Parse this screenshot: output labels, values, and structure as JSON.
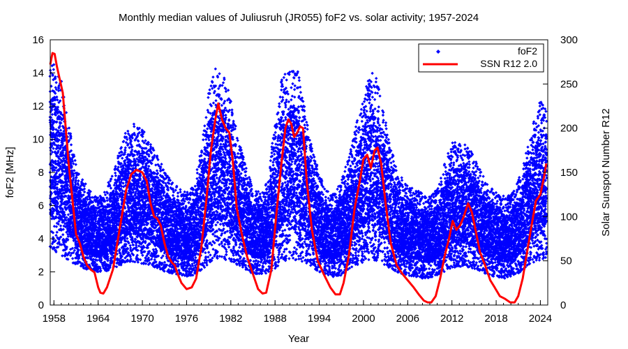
{
  "chart_data": {
    "type": "scatter",
    "title": "Monthly median values of Juliusruh (JR055) foF2 vs. solar activity; 1957-2024",
    "xlabel": "Year",
    "ylabel": "foF2 [MHz]",
    "y2label": "Solar Sunspot Number R12",
    "xlim": [
      1957.5,
      2025
    ],
    "ylim": [
      0,
      16
    ],
    "y2lim": [
      0,
      300
    ],
    "x_ticks": [
      "1958",
      "1964",
      "1970",
      "1976",
      "1982",
      "1988",
      "1994",
      "2000",
      "2006",
      "2012",
      "2018",
      "2024"
    ],
    "y_ticks": [
      "0",
      "2",
      "4",
      "6",
      "8",
      "10",
      "12",
      "14",
      "16"
    ],
    "y2_ticks": [
      "0",
      "50",
      "100",
      "150",
      "200",
      "250",
      "300"
    ],
    "legend_position": "top-right",
    "series": [
      {
        "name": "foF2",
        "kind": "scatter",
        "axis": "left",
        "color": "#0000ff",
        "envelope": {
          "x": [
            1957.5,
            1958,
            1959,
            1960,
            1961,
            1962,
            1963,
            1964,
            1965,
            1966,
            1967,
            1968,
            1969,
            1970,
            1971,
            1972,
            1973,
            1974,
            1975,
            1976,
            1977,
            1978,
            1979,
            1980,
            1981,
            1982,
            1983,
            1984,
            1985,
            1986,
            1987,
            1988,
            1989,
            1990,
            1991,
            1992,
            1993,
            1994,
            1995,
            1996,
            1997,
            1998,
            1999,
            2000,
            2001,
            2002,
            2003,
            2004,
            2005,
            2006,
            2007,
            2008,
            2009,
            2010,
            2011,
            2012,
            2013,
            2014,
            2015,
            2016,
            2017,
            2018,
            2019,
            2020,
            2021,
            2022,
            2023,
            2024,
            2024.9
          ],
          "low": [
            3.5,
            3.3,
            3.0,
            2.7,
            2.4,
            2.2,
            2.1,
            2.0,
            2.0,
            2.2,
            2.4,
            2.6,
            2.6,
            2.5,
            2.4,
            2.2,
            2.0,
            1.9,
            1.8,
            1.7,
            1.8,
            2.1,
            2.5,
            2.8,
            2.8,
            2.6,
            2.4,
            2.1,
            1.9,
            1.8,
            1.9,
            2.2,
            2.6,
            2.7,
            2.7,
            2.6,
            2.3,
            2.0,
            1.8,
            1.7,
            1.8,
            2.1,
            2.4,
            2.6,
            2.7,
            2.6,
            2.4,
            2.1,
            1.9,
            1.8,
            1.7,
            1.6,
            1.6,
            1.8,
            2.0,
            2.2,
            2.3,
            2.3,
            2.2,
            2.0,
            1.8,
            1.7,
            1.6,
            1.7,
            1.9,
            2.2,
            2.5,
            2.7,
            2.9
          ],
          "high": [
            14.5,
            15.0,
            13.5,
            11.0,
            8.5,
            7.5,
            6.8,
            6.5,
            7.0,
            8.0,
            9.5,
            10.8,
            11.0,
            10.8,
            9.8,
            9.2,
            8.0,
            7.5,
            7.0,
            6.8,
            7.5,
            9.5,
            13.0,
            14.5,
            14.0,
            12.5,
            10.0,
            8.5,
            7.0,
            6.8,
            7.5,
            11.0,
            14.0,
            14.2,
            14.3,
            12.0,
            9.5,
            8.0,
            7.0,
            6.8,
            7.5,
            9.0,
            11.0,
            12.5,
            14.4,
            13.5,
            11.0,
            9.0,
            7.8,
            7.3,
            7.0,
            6.8,
            6.5,
            7.0,
            8.5,
            9.8,
            10.0,
            9.8,
            9.0,
            8.0,
            7.3,
            6.8,
            6.6,
            6.6,
            7.5,
            9.0,
            11.0,
            12.3,
            12.3
          ]
        }
      },
      {
        "name": "SSN R12 2.0",
        "kind": "line",
        "axis": "right",
        "color": "#ff0000",
        "x": [
          1957.5,
          1957.8,
          1958.1,
          1958.4,
          1958.8,
          1959.2,
          1959.6,
          1960.0,
          1960.5,
          1961.0,
          1961.5,
          1962.0,
          1962.5,
          1963.0,
          1963.5,
          1964.0,
          1964.3,
          1964.7,
          1965.2,
          1966.0,
          1967.0,
          1967.8,
          1968.5,
          1969.2,
          1970.0,
          1970.6,
          1971.1,
          1971.6,
          1972.0,
          1972.5,
          1973.0,
          1973.5,
          1974.0,
          1974.4,
          1974.8,
          1975.3,
          1976.0,
          1976.7,
          1977.3,
          1978.0,
          1978.7,
          1979.3,
          1979.9,
          1980.3,
          1980.8,
          1981.3,
          1981.8,
          1982.3,
          1982.8,
          1983.5,
          1984.2,
          1985.0,
          1985.7,
          1986.3,
          1986.8,
          1987.5,
          1988.2,
          1988.8,
          1989.4,
          1989.8,
          1990.2,
          1990.6,
          1991.0,
          1991.4,
          1991.8,
          1992.3,
          1993.0,
          1993.8,
          1994.6,
          1995.5,
          1996.2,
          1996.8,
          1997.3,
          1998.0,
          1998.8,
          1999.5,
          2000.0,
          2000.5,
          2001.0,
          2001.5,
          2001.9,
          2002.4,
          2003.0,
          2003.7,
          2004.5,
          2005.3,
          2006.0,
          2006.8,
          2007.5,
          2008.2,
          2008.7,
          2009.2,
          2009.8,
          2010.4,
          2011.0,
          2011.6,
          2012.1,
          2012.6,
          2013.1,
          2013.6,
          2014.2,
          2014.7,
          2015.2,
          2015.8,
          2016.5,
          2017.2,
          2017.8,
          2018.5,
          2019.2,
          2019.9,
          2020.5,
          2021.0,
          2021.6,
          2022.2,
          2022.8,
          2023.4,
          2024.0,
          2024.5,
          2024.8
        ],
        "values": [
          272,
          285,
          284,
          270,
          255,
          240,
          200,
          160,
          120,
          80,
          70,
          55,
          45,
          40,
          37,
          20,
          14,
          13,
          20,
          40,
          90,
          130,
          148,
          153,
          150,
          140,
          115,
          100,
          98,
          90,
          70,
          55,
          48,
          45,
          35,
          25,
          18,
          20,
          30,
          65,
          120,
          175,
          210,
          228,
          210,
          200,
          195,
          160,
          110,
          80,
          55,
          35,
          18,
          13,
          14,
          40,
          105,
          155,
          200,
          210,
          205,
          190,
          195,
          202,
          200,
          140,
          85,
          50,
          35,
          20,
          12,
          12,
          25,
          55,
          110,
          140,
          165,
          170,
          155,
          175,
          178,
          160,
          115,
          70,
          45,
          35,
          28,
          20,
          12,
          5,
          3,
          3,
          10,
          30,
          55,
          75,
          95,
          85,
          90,
          100,
          115,
          105,
          85,
          60,
          45,
          28,
          20,
          10,
          7,
          3,
          3,
          10,
          30,
          60,
          90,
          118,
          125,
          145,
          160
        ]
      }
    ]
  }
}
